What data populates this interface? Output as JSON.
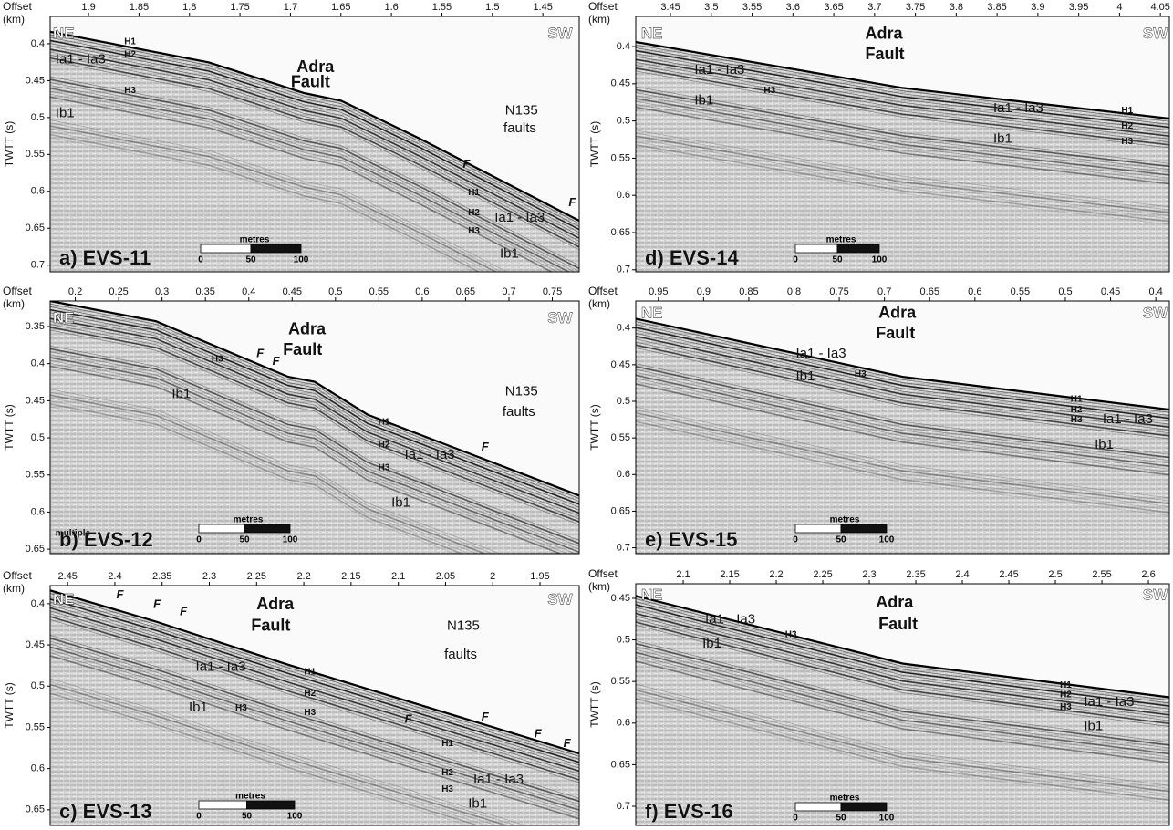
{
  "panels": [
    {
      "label": "a) EVS-11",
      "x_title": "Offset",
      "x_unit": "(km)",
      "y_title": "TWTT (s)",
      "xlim": [
        1.938,
        1.414
      ],
      "xticks": [
        1.9,
        1.85,
        1.8,
        1.75,
        1.7,
        1.65,
        1.6,
        1.55,
        1.5,
        1.45
      ],
      "ylim": [
        0.363,
        0.709
      ],
      "yticks": [
        0.4,
        0.45,
        0.5,
        0.55,
        0.6,
        0.65,
        0.7
      ],
      "scale": {
        "title": "metres",
        "ticks": [
          0,
          50,
          100
        ]
      },
      "annotations": [
        "NE",
        "SW",
        "H1",
        "H2",
        "Ia1 - Ia3",
        "H3",
        "Ib1",
        "Adra",
        "Fault",
        "N135",
        "faults",
        "F",
        "H1",
        "H2",
        "H3",
        "Ia1 - Ia3",
        "Ib1",
        "F"
      ]
    },
    {
      "label": "b) EVS-12",
      "x_title": "Offset",
      "x_unit": "(km)",
      "y_title": "TWTT (s)",
      "xlim": [
        0.171,
        0.781
      ],
      "xticks": [
        0.2,
        0.25,
        0.3,
        0.35,
        0.4,
        0.45,
        0.5,
        0.55,
        0.6,
        0.65,
        0.7,
        0.75
      ],
      "ylim": [
        0.3156,
        0.656
      ],
      "yticks": [
        0.35,
        0.4,
        0.45,
        0.5,
        0.55,
        0.6,
        0.65
      ],
      "scale": {
        "title": "metres",
        "ticks": [
          0,
          50,
          100
        ]
      },
      "annotations": [
        "NE",
        "SW",
        "H3",
        "F",
        "F",
        "Adra",
        "Fault",
        "Ib1",
        "N135",
        "faults",
        "H1",
        "H2",
        "Ia1 - Ia3",
        "H3",
        "F",
        "Ib1",
        "multiple"
      ]
    },
    {
      "label": "c) EVS-13",
      "x_title": "Offset",
      "x_unit": "(km)",
      "y_title": "TWTT (s)",
      "xlim": [
        2.4685,
        1.9085
      ],
      "xticks": [
        2.45,
        2.4,
        2.35,
        2.3,
        2.25,
        2.2,
        2.15,
        2.1,
        2.05,
        2,
        1.95
      ],
      "ylim": [
        0.378,
        0.669
      ],
      "yticks": [
        0.4,
        0.45,
        0.5,
        0.55,
        0.6,
        0.65
      ],
      "scale": {
        "title": "metres",
        "ticks": [
          0,
          50,
          100
        ]
      },
      "annotations": [
        "NE",
        "SW",
        "F",
        "F",
        "F",
        "Adra",
        "Fault",
        "Ia1 - Ia3",
        "Ib1",
        "H3",
        "H1",
        "H2",
        "H3",
        "N135",
        "faults",
        "F",
        "H1",
        "F",
        "H2",
        "Ia1 - Ia3",
        "H3",
        "Ib1",
        "F",
        "F"
      ]
    },
    {
      "label": "d) EVS-14",
      "x_title": "Offset",
      "x_unit": "(km)",
      "y_title": "TWTT (s)",
      "xlim": [
        3.4075,
        4.061
      ],
      "xticks": [
        3.45,
        3.5,
        3.55,
        3.6,
        3.65,
        3.7,
        3.75,
        3.8,
        3.85,
        3.9,
        3.95,
        4,
        4.05
      ],
      "ylim": [
        0.3595,
        0.7027
      ],
      "yticks": [
        0.4,
        0.45,
        0.5,
        0.55,
        0.6,
        0.65,
        0.7
      ],
      "scale": {
        "title": "metres",
        "ticks": [
          0,
          50,
          100
        ]
      },
      "annotations": [
        "NE",
        "SW",
        "Adra",
        "Fault",
        "Ia1 - Ia3",
        "H3",
        "Ib1",
        "Ia1 - Ia3",
        "H1",
        "H2",
        "H3",
        "Ib1"
      ]
    },
    {
      "label": "e) EVS-15",
      "x_title": "Offset",
      "x_unit": "(km)",
      "y_title": "TWTT (s)",
      "xlim": [
        0.975,
        0.385
      ],
      "xticks": [
        0.95,
        0.9,
        0.85,
        0.8,
        0.75,
        0.7,
        0.65,
        0.6,
        0.55,
        0.5,
        0.45,
        0.4
      ],
      "ylim": [
        0.363,
        0.708
      ],
      "yticks": [
        0.4,
        0.45,
        0.5,
        0.55,
        0.6,
        0.65,
        0.7
      ],
      "scale": {
        "title": "metres",
        "ticks": [
          0,
          50,
          100
        ]
      },
      "annotations": [
        "NE",
        "SW",
        "Adra",
        "Fault",
        "Ia1 - Ia3",
        "Ib1",
        "H3",
        "H1",
        "H2",
        "H3",
        "Ia1 - Ia3",
        "Ib1"
      ]
    },
    {
      "label": "f) EVS-16",
      "x_title": "Offset",
      "x_unit": "(km)",
      "y_title": "TWTT (s)",
      "xlim": [
        2.049,
        2.6225
      ],
      "xticks": [
        2.1,
        2.15,
        2.2,
        2.25,
        2.3,
        2.35,
        2.4,
        2.45,
        2.5,
        2.55,
        2.6
      ],
      "ylim": [
        0.4325,
        0.723
      ],
      "yticks": [
        0.45,
        0.5,
        0.55,
        0.6,
        0.65,
        0.7
      ],
      "scale": {
        "title": "metres",
        "ticks": [
          0,
          50,
          100
        ]
      },
      "annotations": [
        "NE",
        "SW",
        "Ia1 - Ia3",
        "H3",
        "Ib1",
        "Adra",
        "Fault",
        "H1",
        "H2",
        "H3",
        "Ia1 - Ia3",
        "Ib1"
      ]
    }
  ]
}
